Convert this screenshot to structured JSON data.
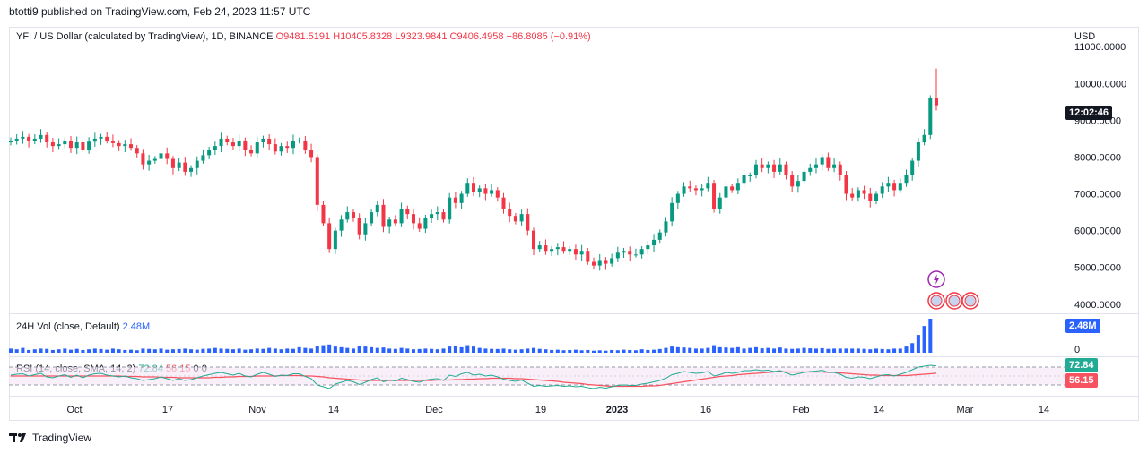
{
  "header": {
    "published": "btotti9 published on TradingView.com, Feb 24, 2023 11:57 UTC"
  },
  "legend": {
    "symbol": "YFI / US Dollar (calculated by TradingView), 1D, BINANCE",
    "open": "O9481.5191",
    "high": "H10405.8328",
    "low": "L9323.9841",
    "close": "C9406.4958",
    "change": "−86.8085 (−0.91%)"
  },
  "currency": "USD",
  "price_badge": "12:02:46",
  "volume": {
    "label": "24H Vol (close, Default)",
    "value": "2.48M",
    "badge": "2.48M",
    "zero": "0"
  },
  "rsi": {
    "label": "RSI (14, close, SMA, 14, 2)",
    "rsi_value": "72.84",
    "sma_value": "56.15",
    "zeros": "0 0",
    "rsi_badge": "72.84",
    "sma_badge": "56.15"
  },
  "footer": {
    "brand": "TradingView"
  },
  "colors": {
    "up": "#26a69a",
    "up_fill": "#089981",
    "down": "#f23645",
    "volume": "#2962ff",
    "rsi_line": "#22ab94",
    "sma_line": "#f7525f",
    "band_fill": "#f3e5f5"
  },
  "chart_data": {
    "type": "candlestick",
    "price_axis": {
      "labels": [
        "11000.0000",
        "10000.0000",
        "9000.0000",
        "8000.0000",
        "7000.0000",
        "6000.0000",
        "5000.0000",
        "4000.0000"
      ],
      "ylim": [
        3800,
        11200
      ]
    },
    "x_axis": {
      "labels": [
        "Oct",
        "17",
        "Nov",
        "14",
        "Dec",
        "19",
        "2023",
        "16",
        "Feb",
        "14",
        "Mar",
        "14"
      ]
    },
    "last_close": 9406.4958,
    "series": [
      {
        "name": "candles",
        "values": [
          8450,
          8500,
          8550,
          8430,
          8500,
          8600,
          8400,
          8300,
          8350,
          8450,
          8250,
          8400,
          8200,
          8420,
          8500,
          8550,
          8450,
          8380,
          8300,
          8350,
          8250,
          8100,
          7800,
          7900,
          7950,
          8100,
          7950,
          7700,
          7850,
          7600,
          7700,
          7900,
          8050,
          8200,
          8300,
          8500,
          8400,
          8300,
          8450,
          8200,
          8100,
          8400,
          8500,
          8350,
          8150,
          8300,
          8250,
          8450,
          8450,
          8200,
          8000,
          6700,
          6200,
          5500,
          6000,
          6300,
          6500,
          6350,
          5900,
          6200,
          6500,
          6700,
          6100,
          6300,
          6200,
          6600,
          6450,
          6200,
          6050,
          6350,
          6450,
          6500,
          6300,
          6900,
          6750,
          7000,
          7300,
          7050,
          7150,
          7000,
          7100,
          6900,
          6600,
          6400,
          6250,
          6450,
          6000,
          5500,
          5600,
          5450,
          5500,
          5550,
          5450,
          5500,
          5350,
          5450,
          5150,
          5050,
          5200,
          5100,
          5250,
          5400,
          5450,
          5350,
          5350,
          5500,
          5600,
          5750,
          5950,
          6250,
          6750,
          7000,
          7200,
          7150,
          7100,
          7150,
          7300,
          6600,
          6900,
          7200,
          7100,
          7300,
          7500,
          7500,
          7800,
          7700,
          7800,
          7600,
          7800,
          7500,
          7200,
          7350,
          7600,
          7700,
          7800,
          8000,
          7700,
          7800,
          7500,
          7000,
          6900,
          7100,
          7000,
          6800,
          7000,
          7200,
          7300,
          7100,
          7300,
          7500,
          7900,
          8400,
          8600,
          9600,
          9406
        ]
      },
      {
        "name": "24H Vol (close, Default)",
        "values": [
          0.3,
          0.25,
          0.35,
          0.2,
          0.25,
          0.3,
          0.28,
          0.2,
          0.25,
          0.3,
          0.22,
          0.28,
          0.2,
          0.25,
          0.3,
          0.27,
          0.22,
          0.3,
          0.25,
          0.2,
          0.22,
          0.18,
          0.3,
          0.28,
          0.25,
          0.3,
          0.22,
          0.25,
          0.27,
          0.3,
          0.25,
          0.22,
          0.28,
          0.3,
          0.35,
          0.3,
          0.28,
          0.25,
          0.3,
          0.22,
          0.25,
          0.3,
          0.28,
          0.35,
          0.3,
          0.25,
          0.3,
          0.28,
          0.4,
          0.35,
          0.3,
          0.5,
          0.55,
          0.6,
          0.45,
          0.4,
          0.35,
          0.3,
          0.5,
          0.45,
          0.4,
          0.35,
          0.38,
          0.3,
          0.28,
          0.35,
          0.3,
          0.25,
          0.27,
          0.3,
          0.28,
          0.25,
          0.3,
          0.45,
          0.5,
          0.4,
          0.55,
          0.45,
          0.35,
          0.3,
          0.28,
          0.27,
          0.3,
          0.25,
          0.22,
          0.25,
          0.3,
          0.35,
          0.28,
          0.25,
          0.2,
          0.22,
          0.18,
          0.2,
          0.22,
          0.18,
          0.2,
          0.15,
          0.18,
          0.15,
          0.2,
          0.18,
          0.22,
          0.2,
          0.18,
          0.25,
          0.2,
          0.22,
          0.27,
          0.35,
          0.45,
          0.4,
          0.38,
          0.35,
          0.3,
          0.3,
          0.35,
          0.55,
          0.4,
          0.38,
          0.35,
          0.4,
          0.3,
          0.35,
          0.4,
          0.32,
          0.35,
          0.3,
          0.38,
          0.3,
          0.28,
          0.3,
          0.35,
          0.32,
          0.3,
          0.33,
          0.28,
          0.3,
          0.3,
          0.3,
          0.3,
          0.3,
          0.28,
          0.25,
          0.3,
          0.27,
          0.25,
          0.3,
          0.3,
          0.45,
          0.7,
          1.3,
          1.95,
          2.48
        ]
      },
      {
        "name": "RSI",
        "values": [
          52,
          54,
          55,
          50,
          53,
          56,
          48,
          46,
          50,
          53,
          47,
          52,
          46,
          52,
          55,
          56,
          52,
          50,
          48,
          50,
          46,
          44,
          40,
          42,
          44,
          48,
          44,
          40,
          44,
          40,
          42,
          46,
          50,
          53,
          56,
          58,
          55,
          52,
          56,
          50,
          48,
          54,
          58,
          54,
          49,
          52,
          51,
          55,
          55,
          49,
          44,
          30,
          26,
          22,
          32,
          36,
          40,
          37,
          31,
          36,
          42,
          46,
          37,
          41,
          39,
          45,
          42,
          38,
          36,
          41,
          43,
          44,
          40,
          52,
          49,
          55,
          58,
          52,
          54,
          50,
          52,
          48,
          43,
          40,
          38,
          41,
          34,
          27,
          29,
          27,
          28,
          29,
          27,
          28,
          26,
          27,
          24,
          22,
          25,
          23,
          26,
          29,
          30,
          29,
          29,
          32,
          34,
          37,
          40,
          45,
          53,
          56,
          60,
          58,
          56,
          57,
          60,
          50,
          53,
          58,
          56,
          58,
          62,
          62,
          64,
          62,
          63,
          60,
          62,
          57,
          52,
          55,
          58,
          60,
          61,
          63,
          58,
          58,
          54,
          47,
          45,
          48,
          47,
          44,
          48,
          52,
          53,
          50,
          54,
          58,
          64,
          70,
          72,
          74,
          72.84
        ]
      },
      {
        "name": "SMA",
        "values": [
          50,
          50,
          50,
          50,
          50,
          50,
          50,
          50,
          50,
          50,
          50,
          50,
          50,
          50,
          50,
          50,
          50,
          50,
          50,
          49,
          49,
          49,
          48,
          48,
          48,
          47,
          47,
          47,
          46,
          46,
          46,
          46,
          46,
          46,
          47,
          47,
          48,
          48,
          49,
          49,
          49,
          50,
          50,
          50,
          50,
          51,
          51,
          51,
          51,
          50,
          50,
          49,
          48,
          46,
          45,
          44,
          43,
          42,
          41,
          40,
          40,
          40,
          40,
          40,
          40,
          40,
          40,
          40,
          40,
          40,
          40,
          41,
          41,
          41,
          42,
          42,
          43,
          43,
          44,
          44,
          45,
          45,
          45,
          45,
          44,
          44,
          43,
          42,
          41,
          40,
          39,
          38,
          36,
          35,
          34,
          33,
          31,
          30,
          29,
          28,
          27,
          27,
          27,
          27,
          27,
          27,
          28,
          28,
          29,
          31,
          33,
          35,
          37,
          39,
          41,
          43,
          45,
          47,
          49,
          50,
          51,
          53,
          54,
          55,
          56,
          57,
          58,
          59,
          60,
          59,
          59,
          59,
          59,
          59,
          59,
          59,
          58,
          58,
          57,
          56,
          55,
          54,
          53,
          52,
          52,
          51,
          51,
          51,
          51,
          51,
          52,
          53,
          54,
          55,
          56.15
        ]
      }
    ]
  }
}
